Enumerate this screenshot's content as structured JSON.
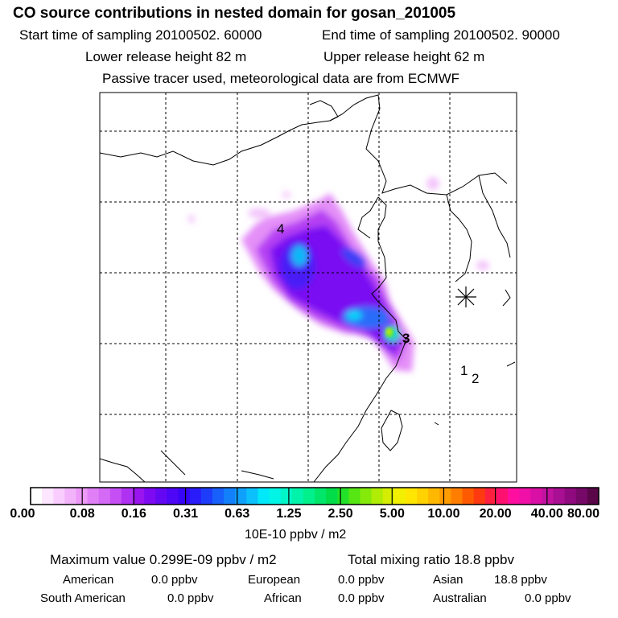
{
  "title": "CO  source contributions in nested domain for gosan_201005",
  "header": {
    "start_label": "Start time of sampling 20100502. 60000",
    "end_label": "End time of sampling 20100502. 90000",
    "lower_label": "Lower release height   82 m",
    "upper_label": "Upper release height   62 m",
    "tracer_label": "Passive tracer used, meteorological data are from ECMWF"
  },
  "map": {
    "source_markers": [
      {
        "id": "1",
        "label": "1"
      },
      {
        "id": "2",
        "label": "2"
      },
      {
        "id": "3",
        "label": "3"
      },
      {
        "id": "4",
        "label": "4"
      }
    ],
    "receptor_symbol": "star-burst-icon"
  },
  "colorbar": {
    "ticks": [
      "0.00",
      "0.08",
      "0.16",
      "0.31",
      "0.63",
      "1.25",
      "2.50",
      "5.00",
      "10.00",
      "20.00",
      "40.00",
      "80.00"
    ],
    "units": "10E-10 ppbv / m2",
    "colors": [
      "#ffffff",
      "#fde6ff",
      "#f9cdfd",
      "#f3b3fb",
      "#ec99f8",
      "#e07ff6",
      "#d46af5",
      "#c54ef4",
      "#b031f2",
      "#9a14ef",
      "#7d0af2",
      "#6408f4",
      "#4d06f6",
      "#3804f8",
      "#2a1bfa",
      "#1e3dfb",
      "#1860fb",
      "#1380fb",
      "#0ea0fb",
      "#0bc0fb",
      "#00e8fa",
      "#00f5e6",
      "#00f6c8",
      "#00f3aa",
      "#00f08c",
      "#00e66a",
      "#00dd48",
      "#23e128",
      "#55e614",
      "#85ea0a",
      "#b0ec05",
      "#d5ed02",
      "#f2ef00",
      "#ffe600",
      "#ffd200",
      "#ffb800",
      "#ff9c00",
      "#ff7e00",
      "#ff5a00",
      "#ff3a10",
      "#ff2040",
      "#fe1070",
      "#ff0ea0",
      "#f010a8",
      "#da10a6",
      "#c212a0",
      "#a80f92",
      "#8f0a7f",
      "#760868",
      "#5a0648"
    ]
  },
  "summary": {
    "max_label": "Maximum value  0.299E-09 ppbv / m2",
    "total_label": "Total mixing ratio       18.8 ppbv",
    "rows": [
      [
        {
          "name": "American",
          "value": "0.0 ppbv"
        },
        {
          "name": "European",
          "value": "0.0 ppbv"
        },
        {
          "name": "Asian",
          "value": "18.8 ppbv"
        }
      ],
      [
        {
          "name": "South American",
          "value": "0.0 ppbv"
        },
        {
          "name": "African",
          "value": "0.0 ppbv"
        },
        {
          "name": "Australian",
          "value": "0.0 ppbv"
        }
      ]
    ]
  }
}
